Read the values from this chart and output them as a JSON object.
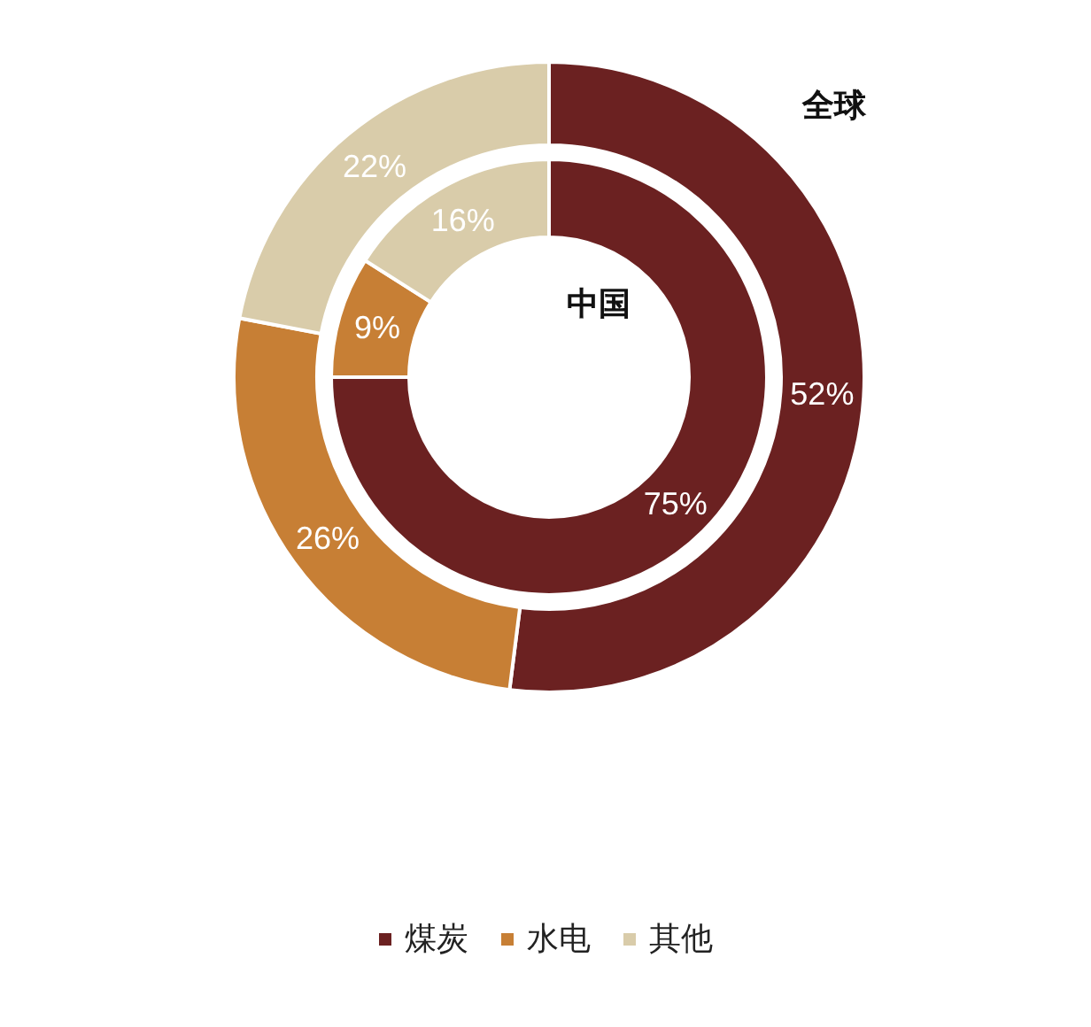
{
  "chart_data": {
    "type": "donut",
    "categories": [
      "煤炭",
      "水电",
      "其他"
    ],
    "colors": [
      "#6b2121",
      "#c77f35",
      "#d9ccaa"
    ],
    "series": [
      {
        "name": "中国",
        "values": [
          75,
          9,
          16
        ],
        "value_labels": [
          "75%",
          "9%",
          "16%"
        ]
      },
      {
        "name": "全球",
        "values": [
          52,
          26,
          22
        ],
        "value_labels": [
          "52%",
          "26%",
          "22%"
        ]
      }
    ],
    "legend": "bottom"
  }
}
